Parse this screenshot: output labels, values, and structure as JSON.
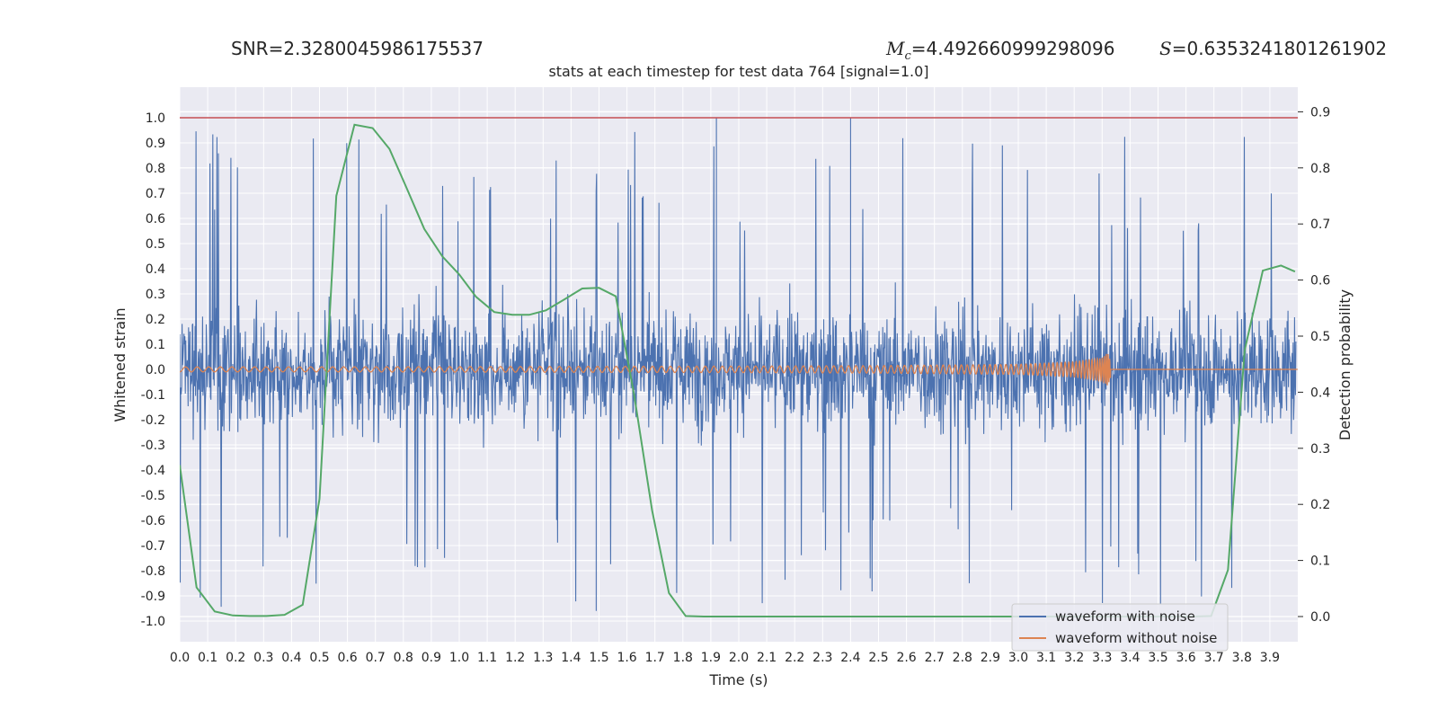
{
  "header": {
    "snr_label": "SNR",
    "snr_value": "2.3280045986175537",
    "mc_symbol": "M",
    "mc_sub": "c",
    "mc_value": "4.492660999298096",
    "s_symbol": "S",
    "s_value": "0.6353241801261902"
  },
  "chart_data": {
    "type": "line",
    "title": "stats at each timestep for test data 764 [signal=1.0]",
    "xlabel": "Time (s)",
    "ylabel_left": "Whitened strain",
    "ylabel_right": "Detection probability",
    "xlim": [
      0,
      4
    ],
    "ylim_left": [
      -1.1,
      1.1
    ],
    "ylim_right": [
      -0.045,
      0.94
    ],
    "x_ticks": [
      "0.0",
      "0.1",
      "0.2",
      "0.3",
      "0.4",
      "0.5",
      "0.6",
      "0.7",
      "0.8",
      "0.9",
      "1.0",
      "1.1",
      "1.2",
      "1.3",
      "1.4",
      "1.5",
      "1.6",
      "1.7",
      "1.8",
      "1.9",
      "2.0",
      "2.1",
      "2.2",
      "2.3",
      "2.4",
      "2.5",
      "2.6",
      "2.7",
      "2.8",
      "2.9",
      "3.0",
      "3.1",
      "3.2",
      "3.3",
      "3.4",
      "3.5",
      "3.6",
      "3.7",
      "3.8",
      "3.9"
    ],
    "y_ticks_left": [
      "1.0",
      "0.9",
      "0.8",
      "0.7",
      "0.6",
      "0.5",
      "0.4",
      "0.3",
      "0.2",
      "0.1",
      "0.0",
      "-0.1",
      "-0.2",
      "-0.3",
      "-0.4",
      "-0.5",
      "-0.6",
      "-0.7",
      "-0.8",
      "-0.9",
      "-1.0"
    ],
    "y_ticks_right": [
      "0.9",
      "0.8",
      "0.7",
      "0.6",
      "0.5",
      "0.4",
      "0.3",
      "0.2",
      "0.1",
      "0.0"
    ],
    "grid": true,
    "legend_position": "lower-right",
    "threshold_line": {
      "y": 1.0,
      "color": "#c44e52"
    },
    "series": [
      {
        "name": "waveform with noise",
        "color": "#4c72b0",
        "axis": "left",
        "samples": 4096,
        "amplitude_typical": 0.35,
        "peak_max": 1.0,
        "peak_min": -0.96
      },
      {
        "name": "waveform without noise",
        "color": "#dd8452",
        "axis": "left",
        "chirp_start_amplitude": 0.01,
        "chirp_peak_amplitude": 0.065,
        "merger_time": 3.32,
        "x": [
          0.0,
          0.5,
          1.0,
          1.5,
          2.0,
          2.5,
          3.0,
          3.2,
          3.3,
          3.32,
          3.34,
          4.0
        ],
        "envelope": [
          0.01,
          0.01,
          0.011,
          0.012,
          0.013,
          0.015,
          0.02,
          0.03,
          0.045,
          0.065,
          0.0,
          0.0
        ]
      },
      {
        "name": "detection probability",
        "color": "#55a868",
        "axis": "right",
        "x": [
          0.0,
          0.06,
          0.125,
          0.19,
          0.25,
          0.31,
          0.375,
          0.44,
          0.5,
          0.56,
          0.625,
          0.69,
          0.75,
          0.81,
          0.875,
          0.94,
          1.0,
          1.06,
          1.125,
          1.19,
          1.25,
          1.31,
          1.375,
          1.44,
          1.5,
          1.56,
          1.625,
          1.69,
          1.75,
          1.81,
          1.875,
          2.0,
          2.5,
          3.0,
          3.5,
          3.625,
          3.69,
          3.75,
          3.81,
          3.875,
          3.94,
          3.99
        ],
        "y": [
          0.27,
          0.052,
          0.009,
          0.002,
          0.001,
          0.001,
          0.003,
          0.021,
          0.21,
          0.75,
          0.877,
          0.871,
          0.834,
          0.766,
          0.691,
          0.642,
          0.61,
          0.57,
          0.543,
          0.538,
          0.538,
          0.546,
          0.565,
          0.585,
          0.586,
          0.571,
          0.397,
          0.189,
          0.042,
          0.001,
          0.0,
          0.0,
          0.0,
          0.0,
          0.0,
          0.0,
          0.001,
          0.083,
          0.475,
          0.617,
          0.626,
          0.615
        ]
      }
    ]
  }
}
